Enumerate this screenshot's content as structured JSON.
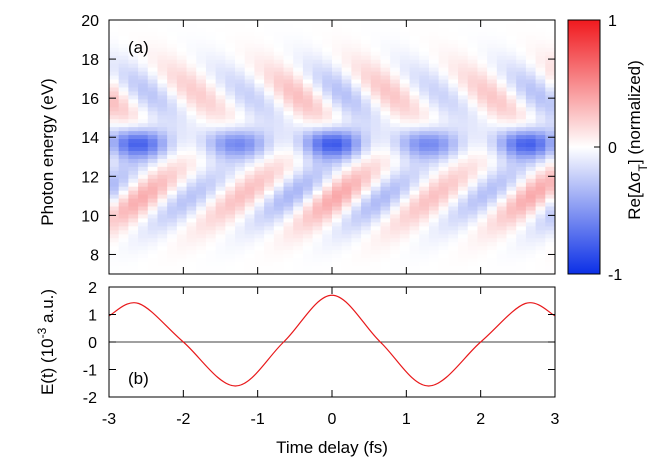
{
  "chart_data": [
    {
      "type": "heatmap",
      "panel_label": "(a)",
      "ylabel": "Photon energy (eV)",
      "xlabel": "",
      "xlim": [
        -3,
        3
      ],
      "ylim": [
        7,
        20
      ],
      "y_ticks": [
        "8",
        "10",
        "12",
        "14",
        "16",
        "18",
        "20"
      ],
      "x_ticks": [],
      "colorbar": {
        "label": "Re[Δσ",
        "label_sub": "T",
        "label_tail": "] (normalized)",
        "range": [
          -1,
          1
        ],
        "ticks": [
          "-1",
          "0",
          "1"
        ],
        "colors": {
          "min": "#0b2fe6",
          "mid": "#ffffff",
          "max": "#f0191e"
        }
      },
      "grid": false,
      "features": {
        "central_band_energy_eV": 13.7,
        "central_band_minima_fs": [
          -1.75,
          -1.35,
          -0.35,
          0.0,
          0.95,
          1.35
        ],
        "oscillation_period_fs": 1.3
      }
    },
    {
      "type": "line",
      "panel_label": "(b)",
      "ylabel": "E(t) (10",
      "ylabel_sup": "-3",
      "ylabel_tail": " a.u.)",
      "xlabel": "Time delay (fs)",
      "xlim": [
        -3,
        3
      ],
      "ylim": [
        -2,
        2
      ],
      "x_ticks": [
        "-3",
        "-2",
        "-1",
        "0",
        "1",
        "2",
        "3"
      ],
      "y_ticks": [
        "-2",
        "-1",
        "0",
        "1",
        "2"
      ],
      "series": [
        {
          "color": "#e8191b",
          "x": [
            -3.0,
            -2.6,
            -2.0,
            -1.3,
            -0.65,
            0.0,
            0.65,
            1.3,
            2.0,
            2.6,
            3.0
          ],
          "y": [
            0.95,
            1.4,
            0.0,
            -1.6,
            0.0,
            1.7,
            0.0,
            -1.6,
            0.0,
            1.4,
            0.95
          ]
        }
      ],
      "zero_line": true,
      "grid": false
    }
  ]
}
